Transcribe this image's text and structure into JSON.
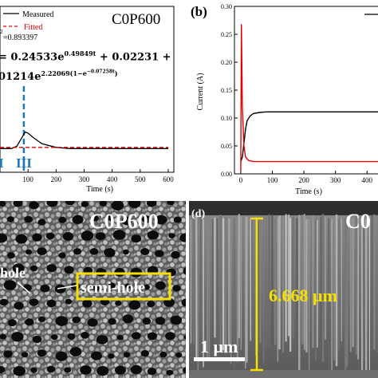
{
  "panel_a": {
    "sample_label": "C0P600",
    "legend": {
      "measured": "Measured",
      "fitted": "Fitted"
    },
    "r2_prefix": "2",
    "r2_value": "=0.893397",
    "equation_line1_main": "= 0.24533e",
    "equation_line1_exp": "0.49849t",
    "equation_line1_tail": " + 0.02231 +",
    "equation_line2_main": "01214e",
    "equation_line2_exp": "2.22069(1−e",
    "equation_line2_exp2": "−0.07258t",
    "equation_line2_close": ")",
    "region_labels": [
      "I",
      "III"
    ],
    "xlabel": "Time (s)",
    "xticks": [
      "100",
      "200",
      "300",
      "400",
      "500",
      "600"
    ],
    "colors": {
      "measured": "#000000",
      "fitted": "#e00000",
      "divider": "#1f77b4",
      "region_text": "#1f77b4"
    }
  },
  "panel_b": {
    "panel_label": "(b)",
    "ylabel": "Current (A)",
    "xlabel": "Time (s)",
    "yticks": [
      "0.00",
      "0.05",
      "0.10",
      "0.15",
      "0.20",
      "0.25",
      "0.30"
    ],
    "xticks": [
      "0",
      "100",
      "200",
      "300",
      "400"
    ],
    "colors": {
      "black_series": "#000000",
      "red_series": "#e00000"
    }
  },
  "panel_c": {
    "sample_label": "C0P600",
    "annotation_hole": "hole",
    "annotation_semi_hole": "semi-hole",
    "colors": {
      "annotation": "#ffffff",
      "box": "#f5e000"
    }
  },
  "panel_d": {
    "panel_label": "(d)",
    "sample_label": "C0",
    "thickness_label": "6.668 μm",
    "scale_bar_label": "1 μm",
    "colors": {
      "measure_line": "#f5e000",
      "text": "#f5e000",
      "scale": "#ffffff"
    }
  },
  "chart_data": [
    {
      "type": "line",
      "title": "",
      "xlabel": "Time (s)",
      "ylabel": "",
      "xlim": [
        0,
        620
      ],
      "series": [
        {
          "name": "Measured",
          "x": [
            0,
            20,
            40,
            60,
            80,
            90,
            100,
            120,
            150,
            200,
            250,
            300,
            400,
            500,
            600
          ],
          "y": [
            0.02,
            0.02,
            0.02,
            0.022,
            0.03,
            0.034,
            0.033,
            0.029,
            0.024,
            0.021,
            0.02,
            0.02,
            0.02,
            0.02,
            0.02
          ]
        },
        {
          "name": "Fitted",
          "x": [
            0,
            600
          ],
          "y": [
            0.021,
            0.021
          ]
        }
      ]
    },
    {
      "type": "line",
      "title": "",
      "xlabel": "Time (s)",
      "ylabel": "Current (A)",
      "xlim": [
        -20,
        460
      ],
      "ylim": [
        0,
        0.3
      ],
      "series": [
        {
          "x": [
            0,
            5,
            10,
            15,
            20,
            30,
            40,
            60,
            80,
            100,
            150,
            200,
            300,
            400,
            460
          ],
          "y": [
            0.022,
            0.03,
            0.055,
            0.08,
            0.095,
            0.104,
            0.108,
            0.11,
            0.111,
            0.111,
            0.111,
            0.111,
            0.111,
            0.111,
            0.111
          ]
        },
        {
          "x": [
            0,
            2,
            5,
            10,
            15,
            25,
            40,
            100,
            200,
            300,
            400,
            460
          ],
          "y": [
            0.005,
            0.268,
            0.12,
            0.05,
            0.03,
            0.024,
            0.022,
            0.022,
            0.022,
            0.022,
            0.022,
            0.022
          ]
        }
      ]
    }
  ]
}
